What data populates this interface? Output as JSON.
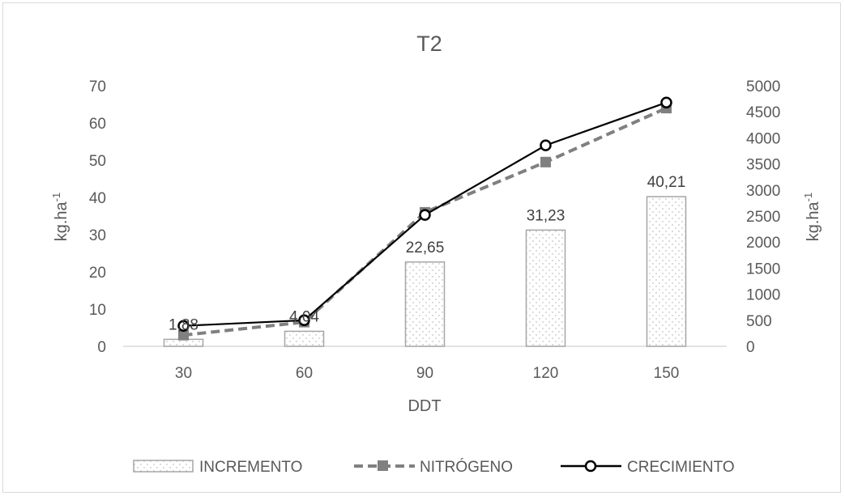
{
  "chart_data": {
    "type": "bar",
    "title": "T2",
    "xlabel": "DDT",
    "ylabel_left": "kg.ha",
    "ylabel_left_sup": "-1",
    "ylabel_right": "kg.ha",
    "ylabel_right_sup": "-1",
    "categories": [
      "30",
      "60",
      "90",
      "120",
      "150"
    ],
    "ylim_left": [
      0,
      70
    ],
    "yticks_left": [
      "0",
      "10",
      "20",
      "30",
      "40",
      "50",
      "60",
      "70"
    ],
    "ylim_right": [
      0,
      5000
    ],
    "yticks_right": [
      "0",
      "500",
      "1000",
      "1500",
      "2000",
      "2500",
      "3000",
      "3500",
      "4000",
      "4500",
      "5000"
    ],
    "legend_position": "bottom",
    "grid": false,
    "series": [
      {
        "name": "INCREMENTO",
        "type": "bar",
        "axis": "left",
        "values": [
          1.88,
          4.04,
          22.65,
          31.23,
          40.21
        ],
        "labels": [
          "1,88",
          "4,04",
          "22,65",
          "31,23",
          "40,21"
        ],
        "color": "#a6a6a6"
      },
      {
        "name": "NITRÓGENO",
        "type": "line",
        "axis": "left",
        "values": [
          3.0,
          6.5,
          36.0,
          49.5,
          64.0
        ],
        "color": "#808080",
        "style": "dashed-square"
      },
      {
        "name": "CRECIMIENTO",
        "type": "line",
        "axis": "left",
        "values": [
          5.5,
          7.0,
          35.3,
          54.0,
          65.5
        ],
        "color": "#000000",
        "style": "solid-circle"
      }
    ]
  }
}
